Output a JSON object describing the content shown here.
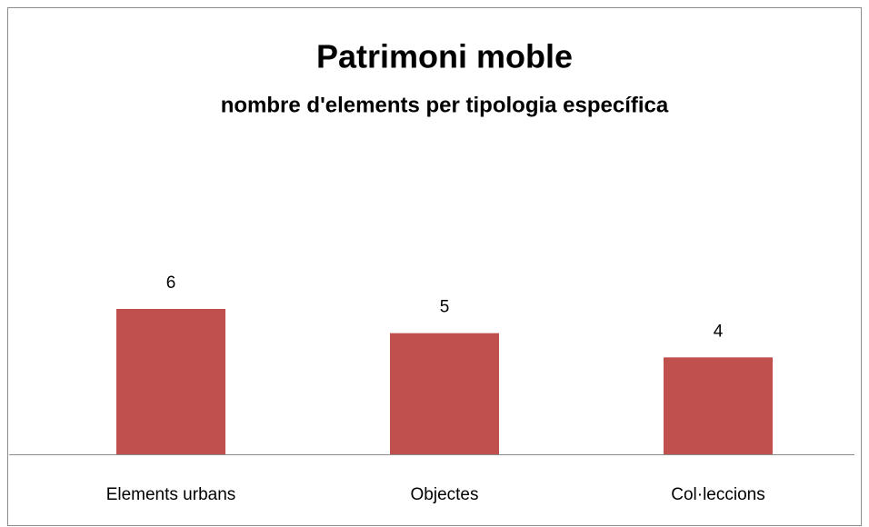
{
  "chart_data": {
    "type": "bar",
    "title": "Patrimoni moble",
    "subtitle": "nombre d'elements per tipologia específica",
    "categories": [
      "Elements urbans",
      "Objectes",
      "Col·leccions"
    ],
    "values": [
      6,
      5,
      4
    ],
    "color": "#c0504d"
  }
}
